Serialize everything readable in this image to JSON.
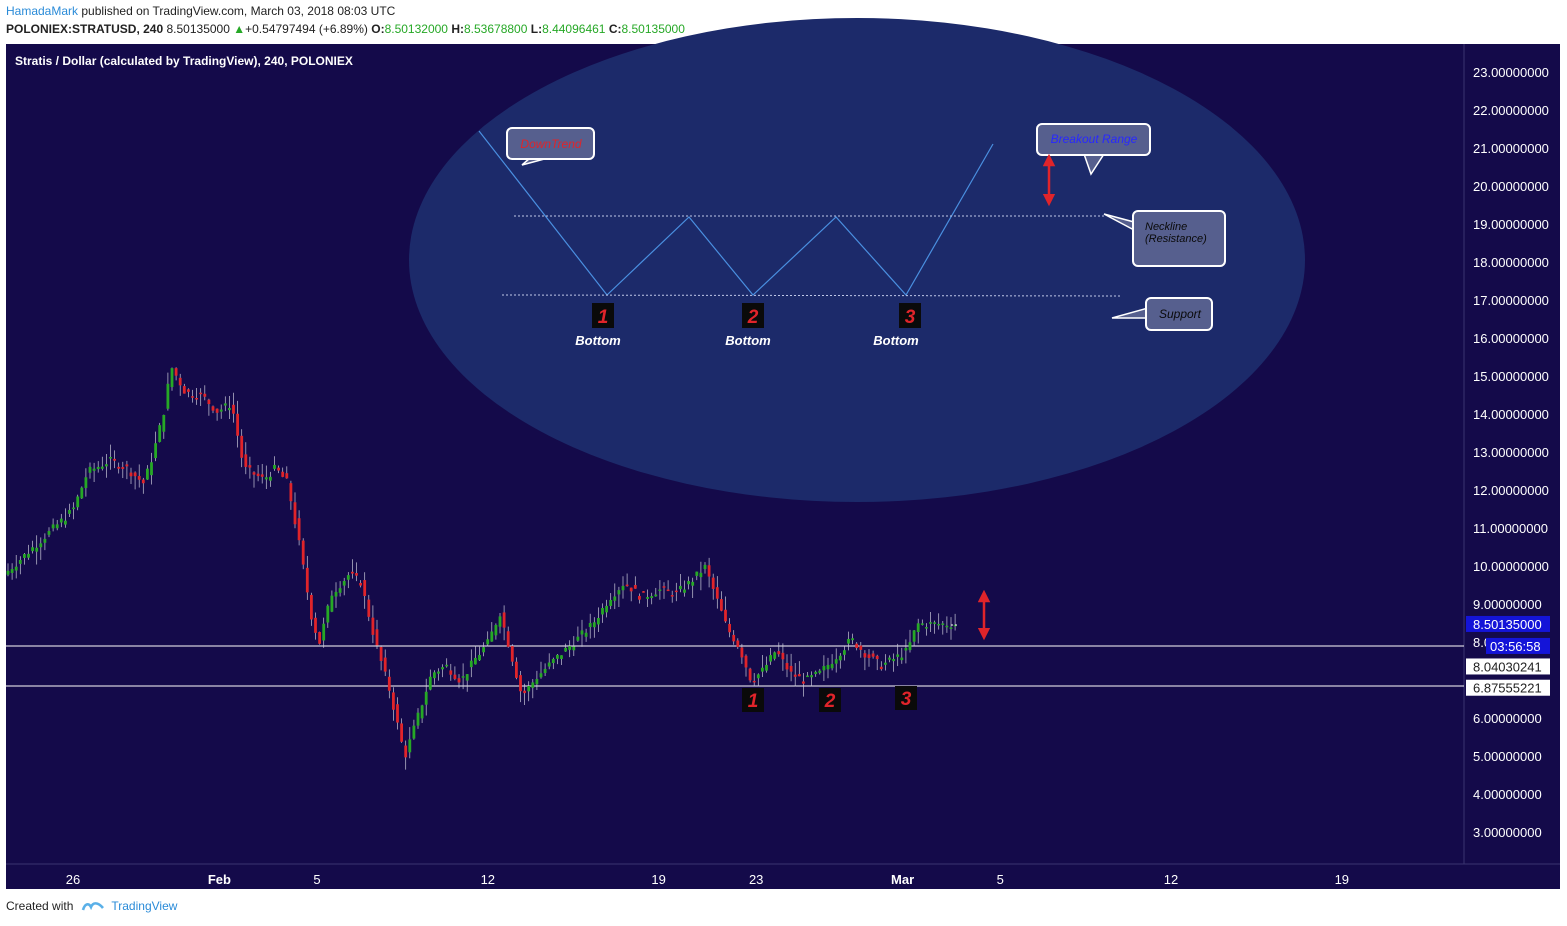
{
  "header": {
    "author": "HamadaMark",
    "published": "published on TradingView.com, March 03, 2018 08:03 UTC"
  },
  "ohlc": {
    "symbol": "POLONIEX:STRATUSD, 240",
    "last": "8.50135000",
    "change_arrow": "▲",
    "change": "+0.54797494 (+6.89%)",
    "o_label": "O:",
    "o": "8.50132000",
    "h_label": "H:",
    "h": "8.53678800",
    "l_label": "L:",
    "l": "8.44096461",
    "c_label": "C:",
    "c": "8.50135000"
  },
  "chart_title": "Stratis / Dollar (calculated by TradingView), 240, POLONIEX",
  "colors": {
    "background": "#140a4a",
    "ellipse": "#1c2a6a",
    "up": "#26a826",
    "down": "#e0242a",
    "pattern_line": "#4a8fe0",
    "callout_fill": "#565f8e",
    "marker_red": "#e0242a",
    "price_tag": "#1414d8"
  },
  "price_axis": {
    "ticks": [
      "23.00000000",
      "22.00000000",
      "21.00000000",
      "20.00000000",
      "19.00000000",
      "18.00000000",
      "17.00000000",
      "16.00000000",
      "15.00000000",
      "14.00000000",
      "13.00000000",
      "12.00000000",
      "11.00000000",
      "10.00000000",
      "9.00000000",
      "8.0",
      "6.00000000",
      "5.00000000",
      "4.00000000",
      "3.00000000"
    ],
    "tick_values": [
      23,
      22,
      21,
      20,
      19,
      18,
      17,
      16,
      15,
      14,
      13,
      12,
      11,
      10,
      9,
      8,
      6,
      5,
      4,
      3
    ],
    "current_price": "8.50135000",
    "countdown": "03:56:58",
    "level_upper": "8.04030241",
    "level_lower": "6.87555221"
  },
  "time_axis": {
    "labels": [
      "26",
      "Feb",
      "5",
      "12",
      "19",
      "23",
      "Mar",
      "5",
      "12",
      "19"
    ],
    "bold": [
      false,
      true,
      false,
      false,
      false,
      false,
      true,
      false,
      false,
      false
    ],
    "day_offsets": [
      0,
      6,
      10,
      17,
      24,
      28,
      34,
      38,
      45,
      52
    ]
  },
  "annotations": {
    "downtrend": "DownTrend",
    "breakout": "Breakout Range",
    "neckline": "Neckline\n(Resistance)",
    "neckline_l1": "Neckline",
    "neckline_l2": "(Resistance)",
    "support": "Support",
    "bottom_label": "Bottom",
    "numbers": [
      "1",
      "2",
      "3"
    ]
  },
  "chart_data": {
    "type": "candlestick",
    "title": "Stratis / Dollar (calculated by TradingView), 240, POLONIEX",
    "x_axis": "time (4h candles), 25 Jan 2018 – 3 Mar 2018",
    "ylim": [
      2.2,
      24
    ],
    "horizontal_levels": [
      8.04030241,
      6.87555221
    ],
    "price_path": [
      [
        0,
        11.5
      ],
      [
        0.6,
        12.5
      ],
      [
        1.5,
        12.8
      ],
      [
        2.2,
        12.6
      ],
      [
        2.9,
        12.2
      ],
      [
        3.3,
        13.0
      ],
      [
        3.8,
        14.3
      ],
      [
        4.0,
        15.3
      ],
      [
        4.6,
        14.6
      ],
      [
        5.3,
        14.5
      ],
      [
        5.9,
        14.1
      ],
      [
        6.5,
        14.3
      ],
      [
        7.0,
        12.6
      ],
      [
        7.8,
        12.3
      ],
      [
        8.3,
        12.6
      ],
      [
        8.8,
        12.2
      ],
      [
        9.3,
        10.5
      ],
      [
        9.8,
        8.6
      ],
      [
        10.1,
        8.0
      ],
      [
        10.6,
        9.3
      ],
      [
        11.3,
        9.8
      ],
      [
        11.8,
        9.6
      ],
      [
        12.4,
        8.0
      ],
      [
        13.0,
        6.7
      ],
      [
        13.6,
        5.0
      ],
      [
        14.2,
        6.2
      ],
      [
        14.7,
        7.2
      ],
      [
        15.3,
        7.4
      ],
      [
        15.9,
        7.0
      ],
      [
        16.5,
        7.6
      ],
      [
        17.0,
        8.0
      ],
      [
        17.5,
        8.8
      ],
      [
        18.0,
        7.6
      ],
      [
        18.4,
        6.6
      ],
      [
        19.0,
        7.1
      ],
      [
        19.8,
        7.6
      ],
      [
        20.5,
        8.0
      ],
      [
        21.3,
        8.5
      ],
      [
        22.0,
        9.2
      ],
      [
        22.6,
        9.6
      ],
      [
        23.3,
        9.2
      ],
      [
        24.0,
        9.4
      ],
      [
        24.7,
        9.3
      ],
      [
        25.3,
        9.6
      ],
      [
        25.9,
        10.0
      ],
      [
        26.3,
        9.3
      ],
      [
        26.8,
        8.4
      ],
      [
        27.3,
        7.9
      ],
      [
        27.8,
        7.0
      ],
      [
        28.3,
        7.3
      ],
      [
        28.8,
        7.8
      ],
      [
        29.4,
        7.2
      ],
      [
        30.0,
        7.0
      ],
      [
        30.6,
        7.2
      ],
      [
        31.2,
        7.6
      ],
      [
        31.9,
        8.1
      ],
      [
        32.5,
        7.7
      ],
      [
        33.1,
        7.4
      ],
      [
        33.7,
        7.6
      ],
      [
        34.2,
        7.8
      ],
      [
        34.6,
        8.5
      ]
    ]
  }
}
